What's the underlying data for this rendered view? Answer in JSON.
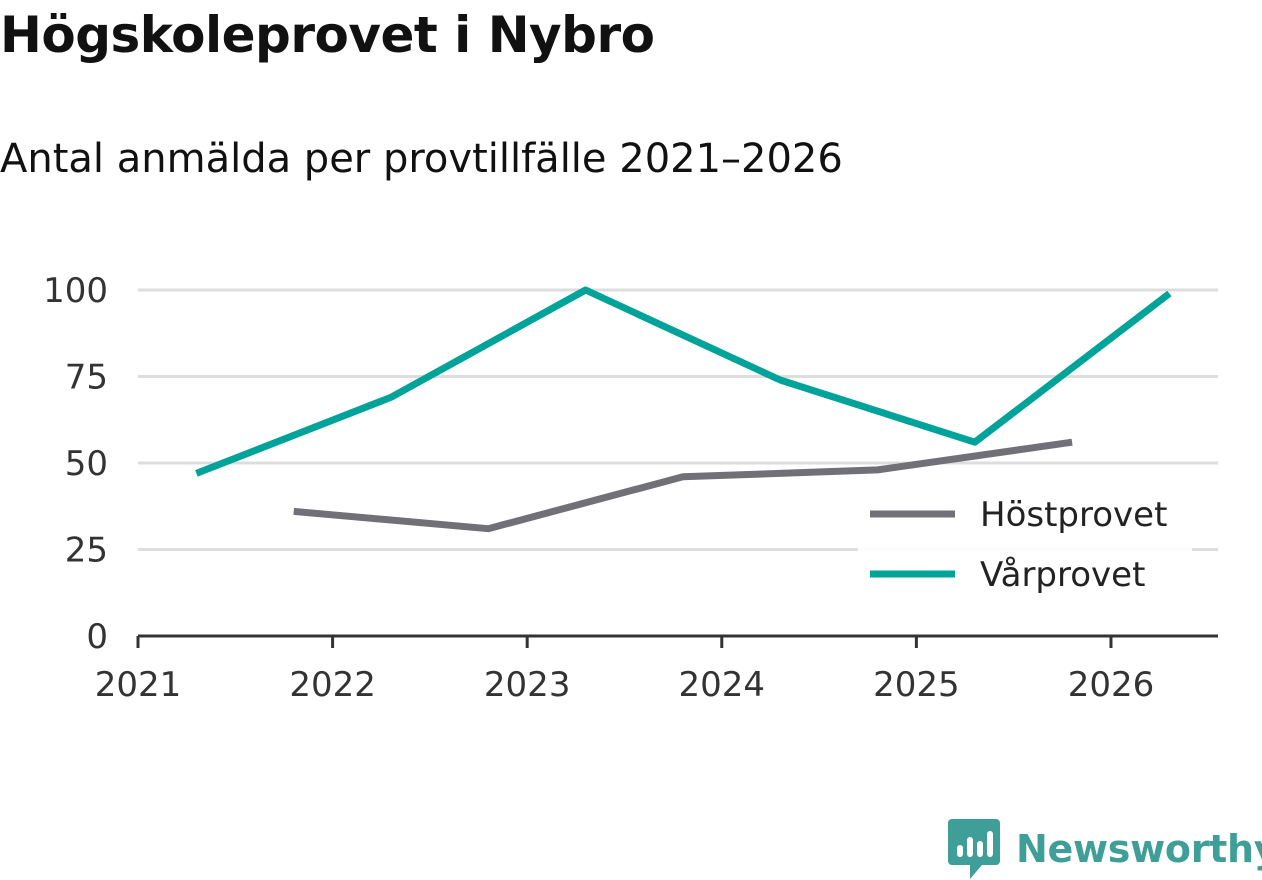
{
  "header": {
    "title": "Högskoleprovet i Nybro",
    "subtitle": "Antal anmälda per provtillfälle 2021–2026"
  },
  "colors": {
    "host": "#727077",
    "var": "#00a39a",
    "grid": "#dddddd",
    "axis": "#333333",
    "brand": "#3f9f98"
  },
  "brand": {
    "name": "Newsworthy",
    "icon": "newsworthy-chart-bubble-icon"
  },
  "chart_data": {
    "type": "line",
    "title": "Högskoleprovet i Nybro",
    "subtitle": "Antal anmälda per provtillfälle 2021–2026",
    "xlabel": "",
    "ylabel": "",
    "x_ticks": [
      "2021",
      "2022",
      "2023",
      "2024",
      "2025",
      "2026"
    ],
    "xlim": [
      2021,
      2026.55
    ],
    "y_ticks": [
      "0",
      "25",
      "50",
      "75",
      "100"
    ],
    "ylim": [
      0,
      100
    ],
    "grid": true,
    "legend_position": "bottom-right",
    "series": [
      {
        "name": "Höstprovet",
        "color": "#727077",
        "x": [
          2021.8,
          2022.8,
          2023.8,
          2024.8,
          2025.8
        ],
        "values": [
          36,
          31,
          46,
          48,
          56
        ]
      },
      {
        "name": "Vårprovet",
        "color": "#00a39a",
        "x": [
          2021.3,
          2022.3,
          2023.3,
          2024.3,
          2025.3,
          2026.3
        ],
        "values": [
          47,
          69,
          100,
          74,
          56,
          99
        ]
      }
    ]
  }
}
